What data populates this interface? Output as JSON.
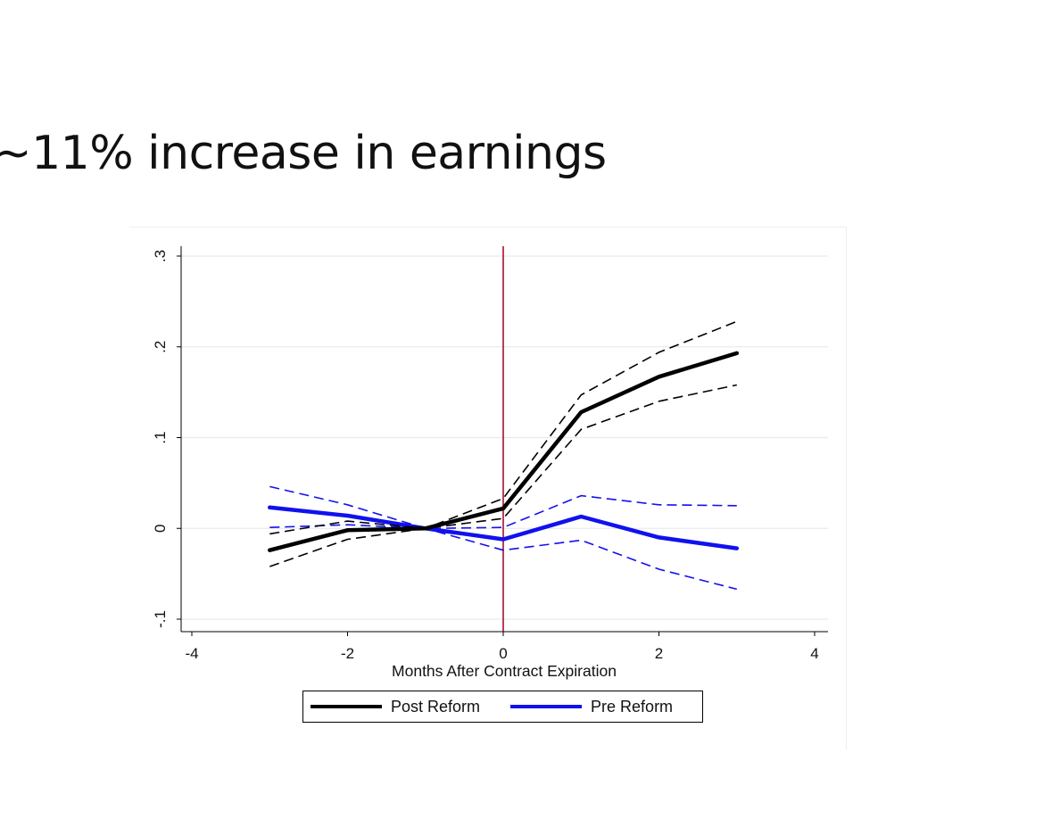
{
  "slide": {
    "title": "~11% increase in earnings"
  },
  "colors": {
    "post": "#000000",
    "pre": "#1111ee",
    "vline": "#a00020",
    "grid": "#e4ecf0"
  },
  "chart_data": {
    "type": "line",
    "title": "",
    "xlabel": "Months After Contract Expiration",
    "ylabel": "",
    "xlim": [
      -4,
      4
    ],
    "ylim": [
      -0.1,
      0.3
    ],
    "x_ticks": [
      -4,
      -2,
      0,
      2,
      4
    ],
    "x_tick_labels": [
      "-4",
      "-2",
      "0",
      "2",
      "4"
    ],
    "y_ticks": [
      -0.1,
      0,
      0.1,
      0.2,
      0.3
    ],
    "y_tick_labels": [
      "-.1",
      "0",
      ".1",
      ".2",
      ".3"
    ],
    "grid": true,
    "vertical_reference_line": 0,
    "legend_position": "bottom",
    "x": [
      -3,
      -2,
      -1,
      0,
      1,
      2,
      3
    ],
    "series": [
      {
        "name": "Post Reform",
        "role": "estimate",
        "values": [
          -0.024,
          -0.002,
          0.0,
          0.022,
          0.128,
          0.167,
          0.193
        ]
      },
      {
        "role": "ci_upper",
        "group": "Post Reform",
        "values": [
          -0.006,
          0.008,
          0.0,
          0.033,
          0.147,
          0.194,
          0.228
        ]
      },
      {
        "role": "ci_lower",
        "group": "Post Reform",
        "values": [
          -0.042,
          -0.012,
          0.0,
          0.011,
          0.109,
          0.14,
          0.158
        ]
      },
      {
        "name": "Pre Reform",
        "role": "estimate",
        "values": [
          0.023,
          0.014,
          0.0,
          -0.012,
          0.013,
          -0.01,
          -0.022
        ]
      },
      {
        "role": "ci_upper",
        "group": "Pre Reform",
        "values": [
          0.046,
          0.026,
          0.0,
          0.001,
          0.036,
          0.026,
          0.025
        ]
      },
      {
        "role": "ci_lower",
        "group": "Pre Reform",
        "values": [
          0.001,
          0.004,
          0.0,
          -0.024,
          -0.013,
          -0.045,
          -0.067
        ]
      }
    ]
  }
}
